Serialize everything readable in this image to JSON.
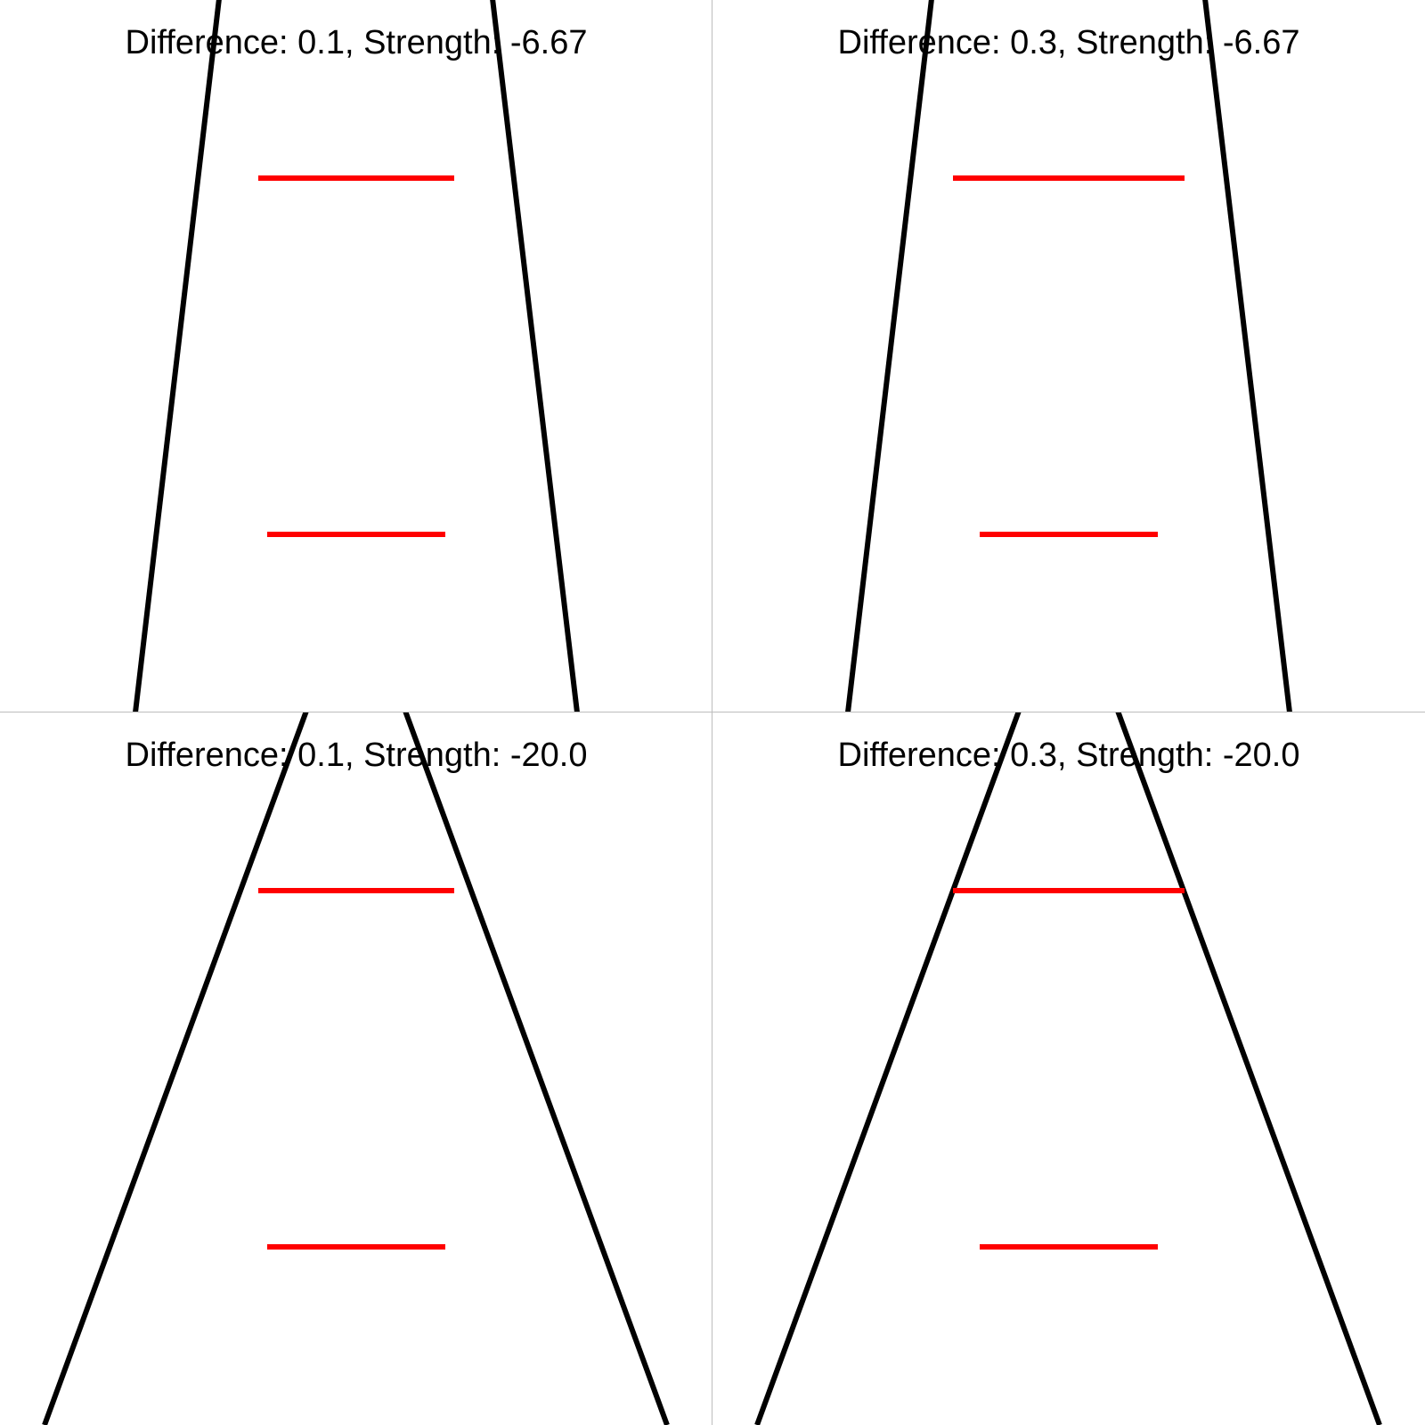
{
  "panels": [
    {
      "title": "Difference: 0.1, Strength: -6.67",
      "difference": 0.1,
      "strength": -6.67
    },
    {
      "title": "Difference: 0.3, Strength: -6.67",
      "difference": 0.3,
      "strength": -6.67
    },
    {
      "title": "Difference: 0.1, Strength: -20.0",
      "difference": 0.1,
      "strength": -20.0
    },
    {
      "title": "Difference: 0.3, Strength: -20.0",
      "difference": 0.3,
      "strength": -20.0
    }
  ],
  "colors": {
    "converging_lines": "#000000",
    "comparison_lines": "#ff0000",
    "divider": "#bdbdbd",
    "background": "#ffffff"
  }
}
